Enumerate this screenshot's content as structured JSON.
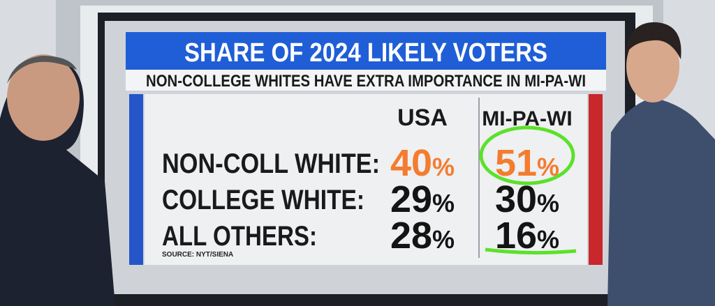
{
  "title": "SHARE OF 2024 LIKELY VOTERS",
  "subtitle": "NON-COLLEGE WHITES HAVE EXTRA IMPORTANCE IN MI-PA-WI",
  "table": {
    "columns": [
      "USA",
      "MI-PA-WI"
    ],
    "rows": [
      {
        "label": "NON-COLL WHITE:",
        "cells": [
          "40%",
          "51%"
        ],
        "highlight": true
      },
      {
        "label": "COLLEGE WHITE:",
        "cells": [
          "29%",
          "30%"
        ],
        "highlight": false
      },
      {
        "label": "ALL OTHERS:",
        "cells": [
          "28%",
          "16%"
        ],
        "highlight": false
      }
    ]
  },
  "source": "SOURCE: NYT/SIENA"
}
